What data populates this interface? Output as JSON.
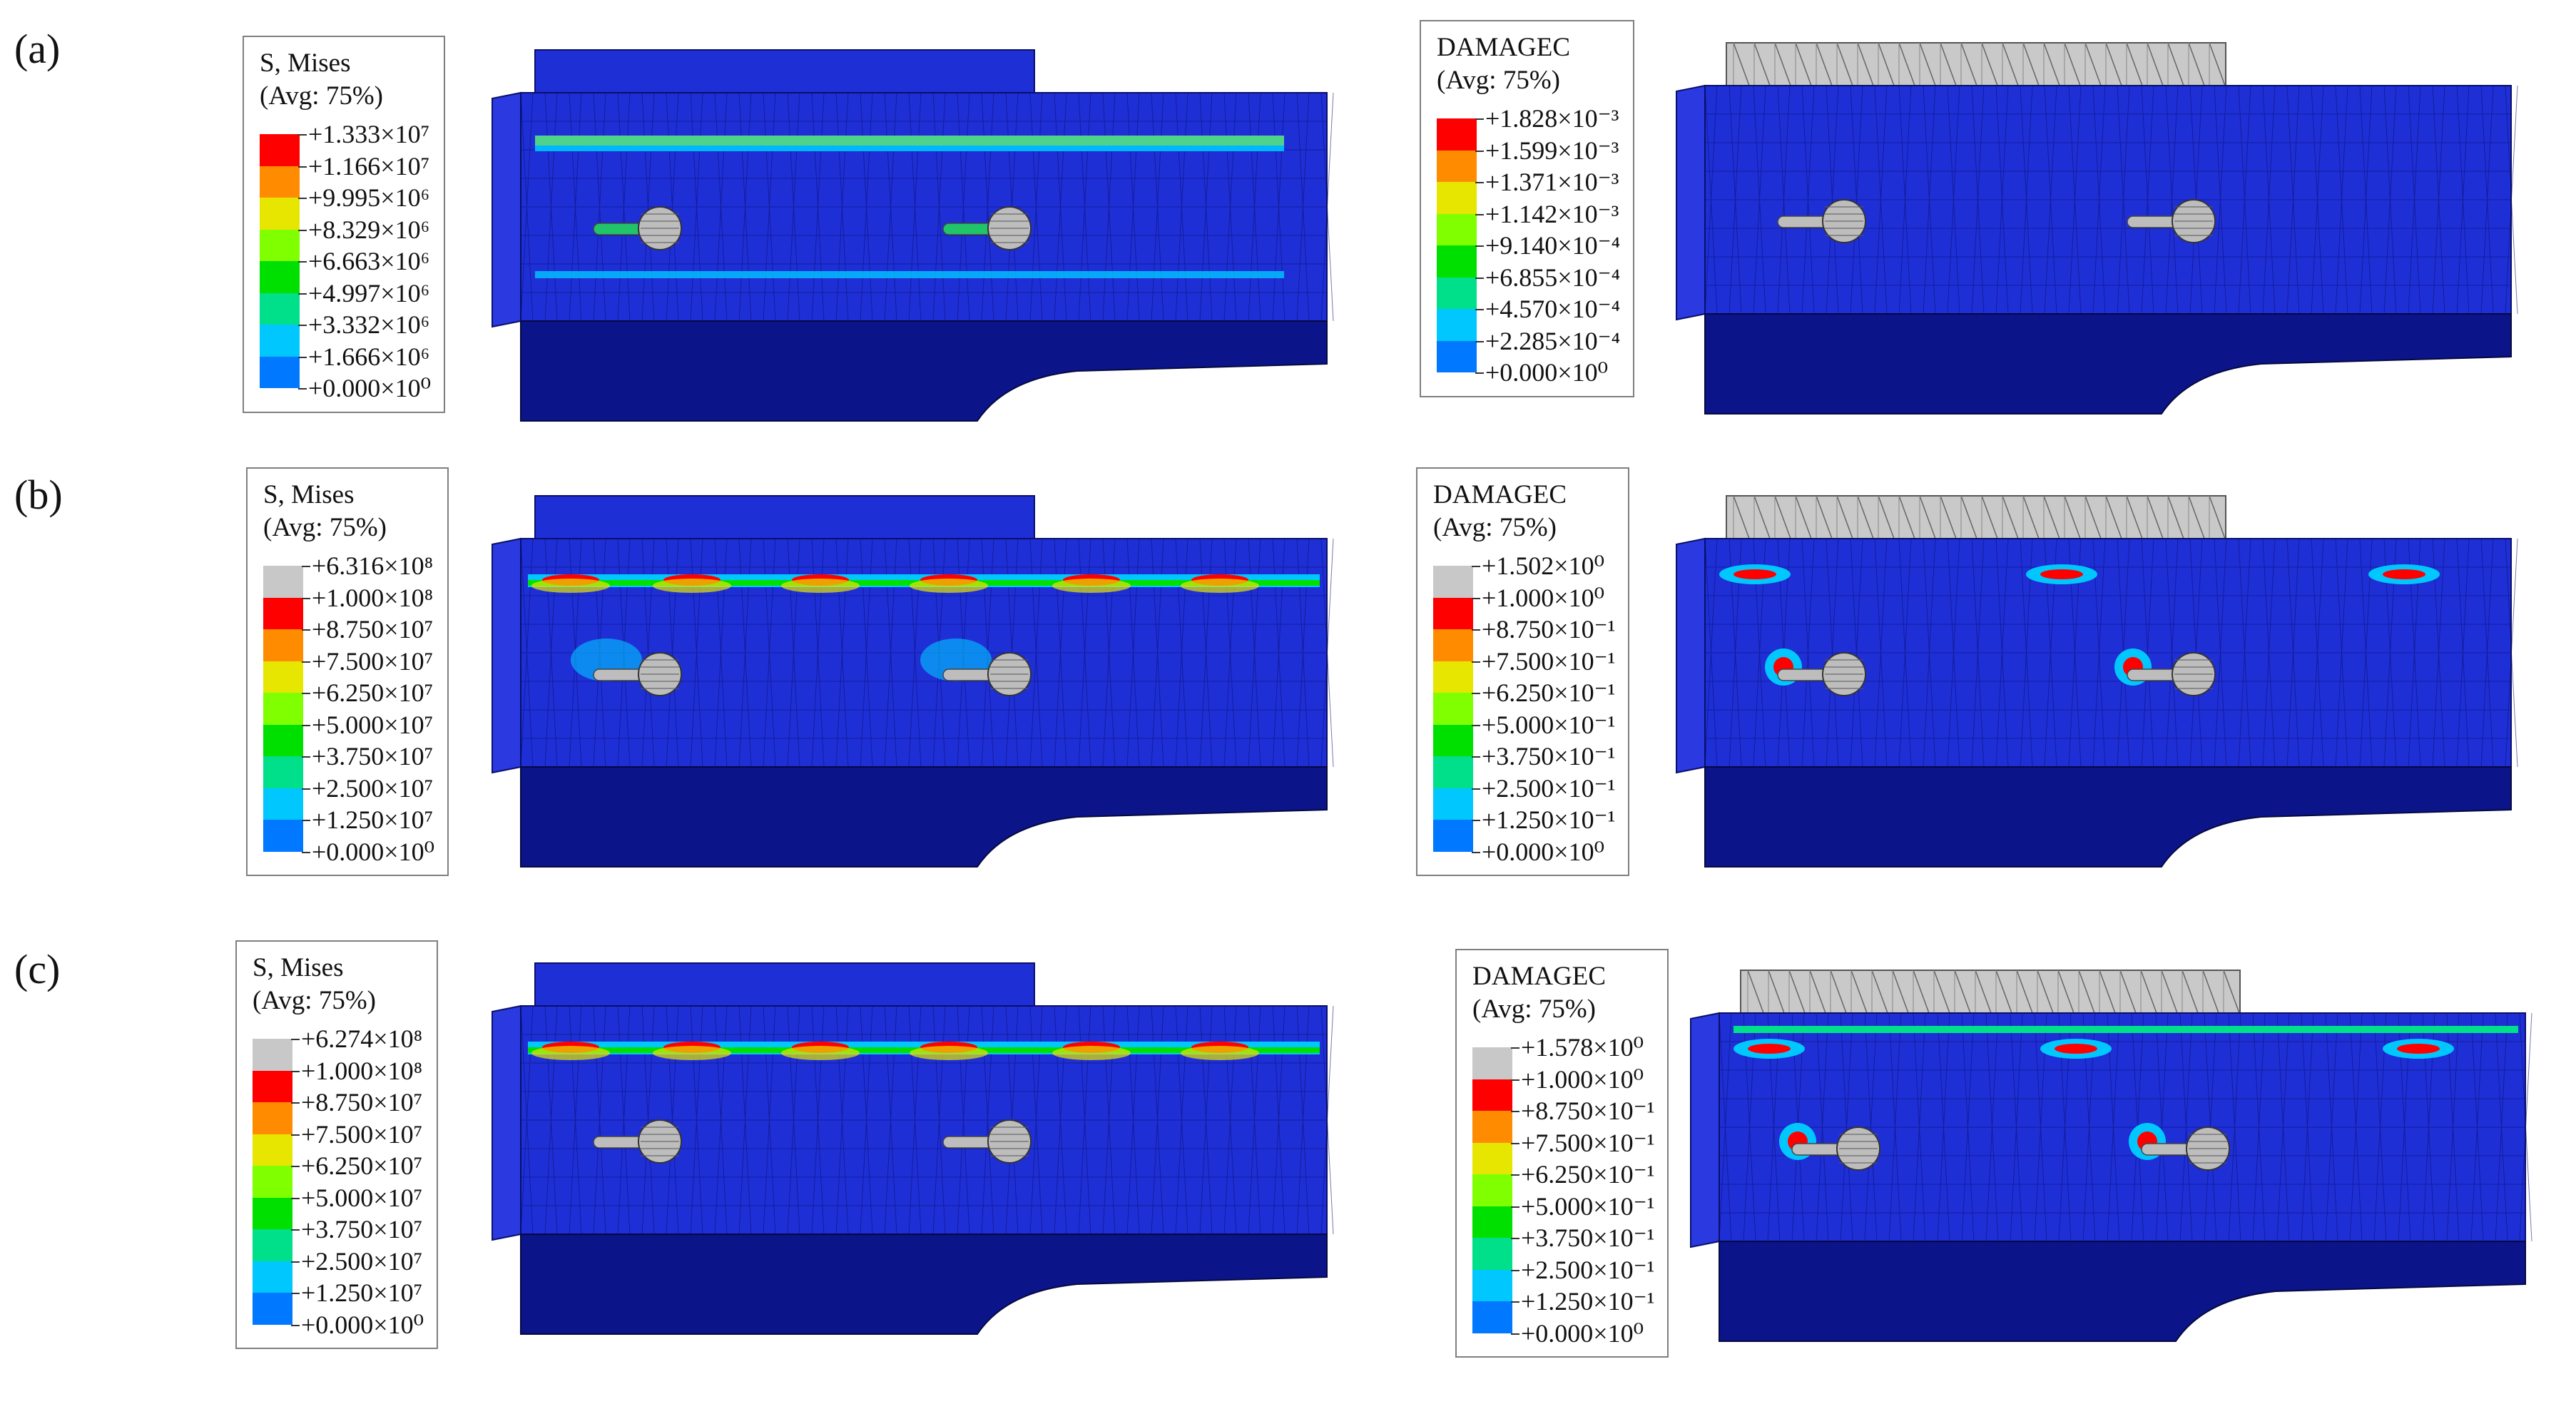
{
  "rows": [
    {
      "label": "(a)",
      "panels": [
        {
          "legend": {
            "title": "S, Mises",
            "subtitle": "(Avg: 75%)",
            "entries": [
              "+1.333×10⁷",
              "+1.166×10⁷",
              "+9.995×10⁶",
              "+8.329×10⁶",
              "+6.663×10⁶",
              "+4.997×10⁶",
              "+3.332×10⁶",
              "+1.666×10⁶",
              "+0.000×10⁰"
            ],
            "colors": [
              "#ff0000",
              "#ff8c00",
              "#e6e600",
              "#7fff00",
              "#00e000",
              "#00e08a",
              "#00c8ff",
              "#0078ff",
              "#0000ff"
            ]
          }
        },
        {
          "legend": {
            "title": "DAMAGEC",
            "subtitle": "(Avg: 75%)",
            "entries": [
              "+1.828×10⁻³",
              "+1.599×10⁻³",
              "+1.371×10⁻³",
              "+1.142×10⁻³",
              "+9.140×10⁻⁴",
              "+6.855×10⁻⁴",
              "+4.570×10⁻⁴",
              "+2.285×10⁻⁴",
              "+0.000×10⁰"
            ],
            "colors": [
              "#ff0000",
              "#ff8c00",
              "#e6e600",
              "#7fff00",
              "#00e000",
              "#00e08a",
              "#00c8ff",
              "#0078ff",
              "#0000ff"
            ]
          }
        }
      ]
    },
    {
      "label": "(b)",
      "panels": [
        {
          "legend": {
            "title": "S, Mises",
            "subtitle": "(Avg: 75%)",
            "entries": [
              "+6.316×10⁸",
              "+1.000×10⁸",
              "+8.750×10⁷",
              "+7.500×10⁷",
              "+6.250×10⁷",
              "+5.000×10⁷",
              "+3.750×10⁷",
              "+2.500×10⁷",
              "+1.250×10⁷",
              "+0.000×10⁰"
            ],
            "colors": [
              "#c8c8c8",
              "#ff0000",
              "#ff8c00",
              "#e6e600",
              "#7fff00",
              "#00e000",
              "#00e08a",
              "#00c8ff",
              "#0078ff",
              "#0000ff"
            ]
          }
        },
        {
          "legend": {
            "title": "DAMAGEC",
            "subtitle": "(Avg: 75%)",
            "entries": [
              "+1.502×10⁰",
              "+1.000×10⁰",
              "+8.750×10⁻¹",
              "+7.500×10⁻¹",
              "+6.250×10⁻¹",
              "+5.000×10⁻¹",
              "+3.750×10⁻¹",
              "+2.500×10⁻¹",
              "+1.250×10⁻¹",
              "+0.000×10⁰"
            ],
            "colors": [
              "#c8c8c8",
              "#ff0000",
              "#ff8c00",
              "#e6e600",
              "#7fff00",
              "#00e000",
              "#00e08a",
              "#00c8ff",
              "#0078ff",
              "#0000ff"
            ]
          }
        }
      ]
    },
    {
      "label": "(c)",
      "panels": [
        {
          "legend": {
            "title": "S, Mises",
            "subtitle": "(Avg: 75%)",
            "entries": [
              "+6.274×10⁸",
              "+1.000×10⁸",
              "+8.750×10⁷",
              "+7.500×10⁷",
              "+6.250×10⁷",
              "+5.000×10⁷",
              "+3.750×10⁷",
              "+2.500×10⁷",
              "+1.250×10⁷",
              "+0.000×10⁰"
            ],
            "colors": [
              "#c8c8c8",
              "#ff0000",
              "#ff8c00",
              "#e6e600",
              "#7fff00",
              "#00e000",
              "#00e08a",
              "#00c8ff",
              "#0078ff",
              "#0000ff"
            ]
          }
        },
        {
          "legend": {
            "title": "DAMAGEC",
            "subtitle": "(Avg: 75%)",
            "entries": [
              "+1.578×10⁰",
              "+1.000×10⁰",
              "+8.750×10⁻¹",
              "+7.500×10⁻¹",
              "+6.250×10⁻¹",
              "+5.000×10⁻¹",
              "+3.750×10⁻¹",
              "+2.500×10⁻¹",
              "+1.250×10⁻¹",
              "+0.000×10⁰"
            ],
            "colors": [
              "#c8c8c8",
              "#ff0000",
              "#ff8c00",
              "#e6e600",
              "#7fff00",
              "#00e000",
              "#00e08a",
              "#00c8ff",
              "#0078ff",
              "#0000ff"
            ]
          }
        }
      ]
    }
  ],
  "colors": {
    "mesh_blue": "#1f2fd6",
    "mesh_dark": "#0b1488",
    "plate_gray": "#c9c9c9",
    "bolt_gray": "#bdbdbd"
  }
}
